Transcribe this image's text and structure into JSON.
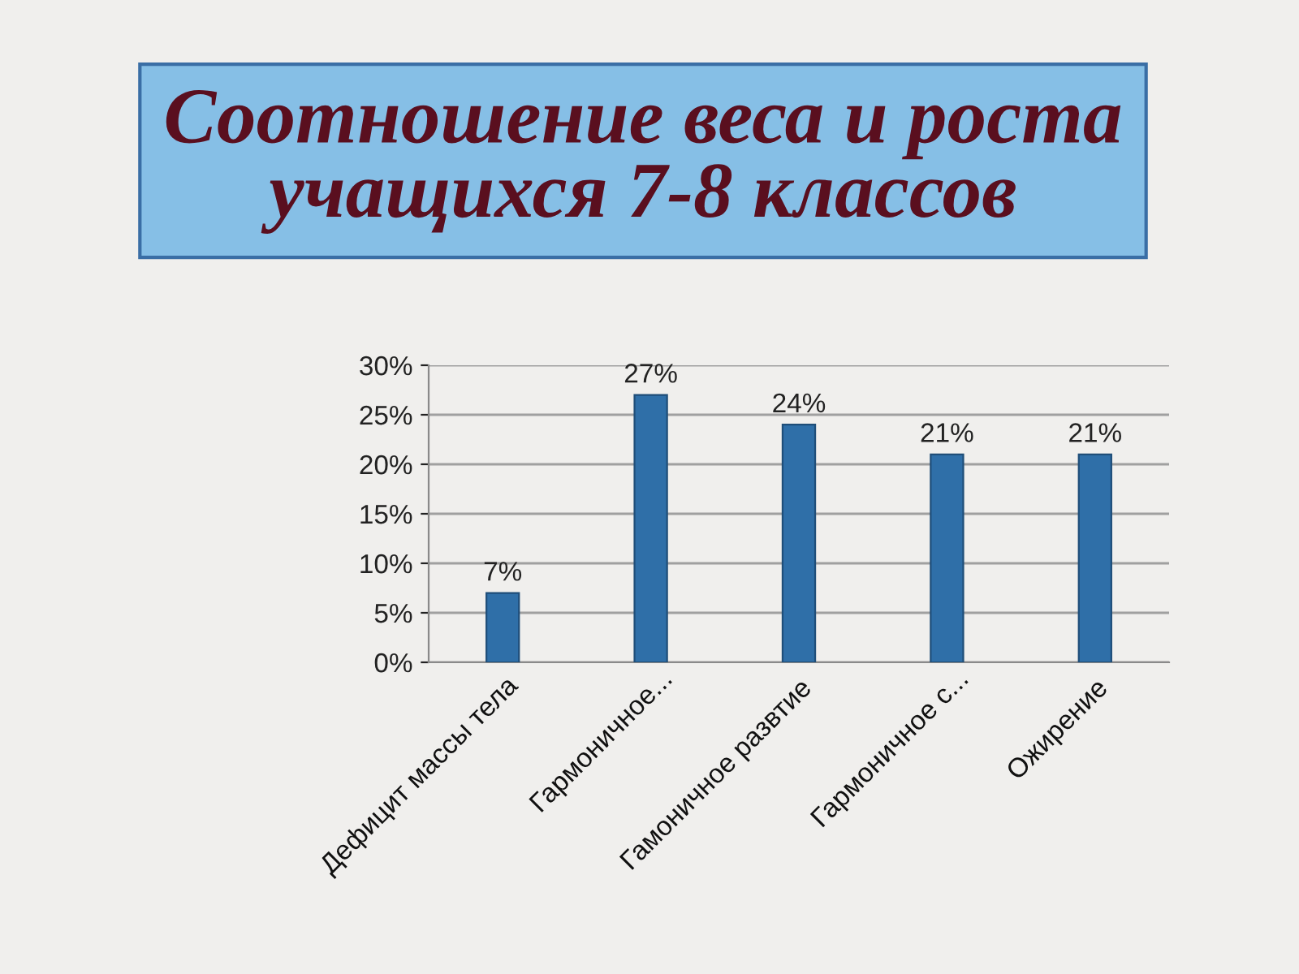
{
  "chart_data": {
    "type": "bar",
    "title": "Соотношение веса и роста\nучащихся 7-8 классов",
    "categories": [
      "Дефицит массы тела",
      "Гармоничное...",
      "Гамоничное развтие",
      "Гармоничное с...",
      "Ожирение"
    ],
    "values": [
      7,
      27,
      24,
      21,
      21
    ],
    "value_labels": [
      "7%",
      "27%",
      "24%",
      "21%",
      "21%"
    ],
    "color": "#2f6fa8",
    "ylim": [
      0,
      30
    ],
    "yticks": [
      {
        "value": 0,
        "label": "0%"
      },
      {
        "value": 5,
        "label": "5%"
      },
      {
        "value": 10,
        "label": "10%"
      },
      {
        "value": 15,
        "label": "15%"
      },
      {
        "value": 20,
        "label": "20%"
      },
      {
        "value": 25,
        "label": "25%"
      },
      {
        "value": 30,
        "label": "30%"
      }
    ],
    "grid": "y"
  }
}
